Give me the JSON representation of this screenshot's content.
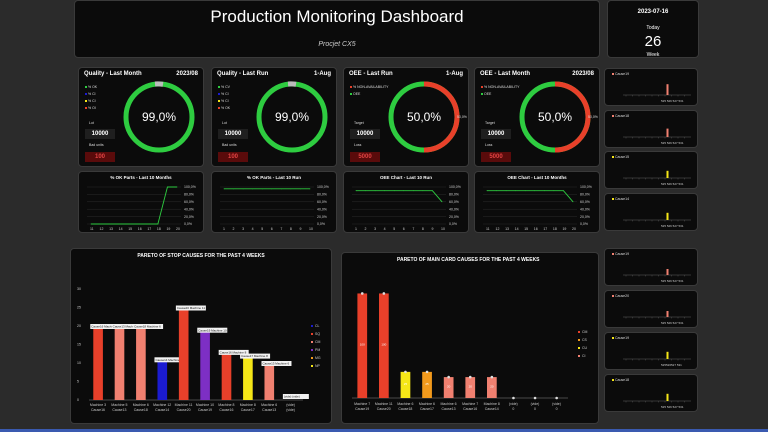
{
  "header": {
    "title": "Production Monitoring Dashboard",
    "subtitle": "Procjet CX5"
  },
  "date_box": {
    "date": "2023-07-16",
    "today_label": "Today",
    "day": "26",
    "week_label": "Week"
  },
  "colors": {
    "green": "#2ecc40",
    "red": "#e8402a",
    "salmon": "#f08070",
    "dark_red": "#5a0b0b",
    "blue": "#1b1bd0",
    "purple": "#7d2fc4",
    "yellow": "#f5e617",
    "orange": "#f29a1c",
    "bg": "#0b0b0b"
  },
  "kpis": [
    {
      "title": "Quality - Last Month",
      "period": "2023/08",
      "legend": [
        "% OK",
        "% Cl",
        "% CI",
        "% OI"
      ],
      "lbl_top": "Lot",
      "lbl_bottom": "Bad units",
      "box_top": "10000",
      "box_bottom": "100",
      "gauge_value": "99,0%",
      "gauge_side": ""
    },
    {
      "title": "Quality - Last Run",
      "period": "1-Aug",
      "legend": [
        "% CV",
        "% CI",
        "% CI",
        "% OK"
      ],
      "lbl_top": "Lot",
      "lbl_bottom": "Bad units",
      "box_top": "10000",
      "box_bottom": "100",
      "gauge_value": "99,0%",
      "gauge_side": ""
    },
    {
      "title": "OEE - Last Run",
      "period": "1-Aug",
      "legend": [
        "% NON-AVAILABILITY",
        "OEE"
      ],
      "lbl_top": "Target",
      "lbl_bottom": "Loss",
      "box_top": "10000",
      "box_bottom": "5000",
      "gauge_value": "50,0%",
      "gauge_side": "50,0%"
    },
    {
      "title": "OEE - Last Month",
      "period": "2023/08",
      "legend": [
        "% NON-AVAILABILITY",
        "OEE"
      ],
      "lbl_top": "Target",
      "lbl_bottom": "Loss",
      "box_top": "10000",
      "box_bottom": "5000",
      "gauge_value": "50,0%",
      "gauge_side": "50,0%"
    }
  ],
  "mini_charts": [
    {
      "title": "% OK Parts - Last 10 Months",
      "y_ticks": [
        "100,0%",
        "80,0%",
        "60,0%",
        "40,0%",
        "20,0%",
        "0,0%"
      ],
      "x_ticks": [
        "11",
        "12",
        "13",
        "14",
        "15",
        "16",
        "17",
        "18",
        "19",
        "20"
      ],
      "values": [
        0,
        0,
        0,
        0,
        0,
        0,
        0,
        0,
        100,
        100
      ]
    },
    {
      "title": "% OK Parts - Last 10 Run",
      "y_ticks": [
        "100,0%",
        "80,0%",
        "60,0%",
        "40,0%",
        "20,0%",
        "0,0%"
      ],
      "x_ticks": [
        "1",
        "2",
        "3",
        "4",
        "5",
        "6",
        "7",
        "8",
        "9",
        "10"
      ],
      "values": [
        95,
        95,
        95,
        95,
        95,
        95,
        95,
        95,
        95,
        95
      ]
    },
    {
      "title": "OEE Chart - Last 10 Run",
      "y_ticks": [
        "100,0%",
        "80,0%",
        "60,0%",
        "40,0%",
        "20,0%",
        "0,0%"
      ],
      "x_ticks": [
        "1",
        "2",
        "3",
        "4",
        "5",
        "6",
        "7",
        "8",
        "9",
        "10"
      ],
      "values": [
        90,
        90,
        90,
        90,
        90,
        90,
        90,
        90,
        90,
        60
      ]
    },
    {
      "title": "OEE Chart - Last 10 Months",
      "y_ticks": [
        "100,0%",
        "80,0%",
        "60,0%",
        "40,0%",
        "20,0%",
        "0,0%"
      ],
      "x_ticks": [
        "11",
        "12",
        "13",
        "14",
        "15",
        "16",
        "17",
        "18",
        "19",
        "20"
      ],
      "values": [
        90,
        90,
        90,
        90,
        90,
        90,
        90,
        90,
        90,
        60
      ]
    }
  ],
  "side_charts_top": [
    {
      "title": "Cause19",
      "color": "#f08070",
      "bar_index": 6,
      "bar_height": 0.9,
      "x_labels": "525 526 527 531"
    },
    {
      "title": "Cause18",
      "color": "#f08070",
      "bar_index": 6,
      "bar_height": 0.7,
      "x_labels": "525 526 527 531"
    },
    {
      "title": "Cause15",
      "color": "#f5e617",
      "bar_index": 6,
      "bar_height": 0.6,
      "x_labels": "525 526 527 531"
    },
    {
      "title": "Cause14",
      "color": "#f5e617",
      "bar_index": 6,
      "bar_height": 0.6,
      "x_labels": "525 526 527 531"
    }
  ],
  "side_charts_bottom": [
    {
      "title": "Cause19",
      "color": "#f08070",
      "bar_index": 6,
      "bar_height": 0.5,
      "x_labels": "525 526 527 531"
    },
    {
      "title": "Cause20",
      "color": "#f08070",
      "bar_index": 6,
      "bar_height": 0.5,
      "x_labels": "525 526 527 531"
    },
    {
      "title": "Cause19",
      "color": "#f5e617",
      "bar_index": 6,
      "bar_height": 0.6,
      "x_labels": "525526527 531"
    },
    {
      "title": "Cause18",
      "color": "#f5e617",
      "bar_index": 6,
      "bar_height": 0.6,
      "x_labels": "525 526 527 531"
    }
  ],
  "pareto_stop": {
    "title": "PARETO OF STOP CAUSES FOR THE PAST 4 WEEKS",
    "legend": [
      "CL",
      "SQ",
      "CM",
      "PM",
      "MG",
      "NP"
    ],
    "legend_colors": [
      "#1b1bd0",
      "#e8402a",
      "#f08070",
      "#7d2fc4",
      "#f29a1c",
      "#f5e617"
    ]
  },
  "pareto_main": {
    "title": "PARETO OF MAIN CARD CAUSES FOR THE PAST 4 WEEKS",
    "legend": [
      "CM",
      "CS",
      "CU",
      "CI"
    ],
    "legend_colors": [
      "#e8402a",
      "#f29a1c",
      "#f5e617",
      "#f08070"
    ]
  },
  "chart_data": [
    {
      "type": "bar",
      "title": "PARETO OF STOP CAUSES FOR THE PAST 4 WEEKS",
      "categories": [
        "Machine 3 Cause16",
        "Machine 5 Cause13",
        "Machine 6 Cause18",
        "Machine 12 Cause14",
        "Machine 11 Cause20",
        "Machine 10 Cause19",
        "Machine 8 Cause16",
        "Machine 8 Cause17",
        "Machine 6 Cause13",
        "(vide) (vide)"
      ],
      "values": [
        20,
        20,
        20,
        11,
        25,
        19,
        13,
        12,
        10,
        0
      ],
      "colors": [
        "#e8402a",
        "#f08070",
        "#f08070",
        "#1b1bd0",
        "#e8402a",
        "#7d2fc4",
        "#e8402a",
        "#f5e617",
        "#f08070",
        "#888888"
      ],
      "data_labels": [
        "Cause16 Machine 3",
        "Cause13 Machine 5",
        "Cause18 Machine 6",
        "Cause14 Machine 12",
        "Cause20 Machine 11",
        "Cause19 Machine 10",
        "Cause16 Machine 8",
        "Cause17 Machine 8",
        "Cause13 Machine 6",
        "(vide) (vide)"
      ],
      "ylim": [
        0,
        30
      ],
      "y_ticks": [
        "30",
        "25",
        "20",
        "15",
        "10",
        "5",
        "0"
      ]
    },
    {
      "type": "bar",
      "title": "PARETO OF MAIN CARD CAUSES FOR THE PAST 4 WEEKS",
      "categories": [
        "Machine 7 Cause19",
        "Machine 11 Cause20",
        "Machine 6 Cause18",
        "Machine 6 Cause17",
        "Machine 6 Cause13",
        "Machine 7 Cause16",
        "Machine 8 Cause14",
        "(vide) 0",
        "(vide) 0",
        "(vide) 0"
      ],
      "values": [
        100,
        100,
        25,
        25,
        20,
        20,
        20,
        0,
        0,
        0
      ],
      "colors": [
        "#e8402a",
        "#e8402a",
        "#f5e617",
        "#f29a1c",
        "#f08070",
        "#f08070",
        "#f08070",
        "#888888",
        "#888888",
        "#888888"
      ],
      "data_labels": [
        "100",
        "100",
        "25",
        "25",
        "20",
        "20",
        "20",
        "0",
        "0",
        "0"
      ],
      "ylim": [
        0,
        110
      ]
    }
  ]
}
